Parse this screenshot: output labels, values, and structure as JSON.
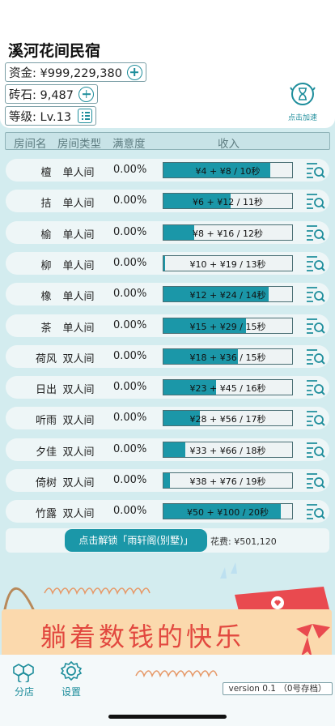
{
  "app": {
    "title": "溪河花间民宿",
    "funds_label": "资金: ¥999,229,380",
    "bricks_label": "砖石: 9,487",
    "level_label": "等级: Lv.13",
    "speed_label": "点击加速"
  },
  "table": {
    "headers": [
      "房间名",
      "房间类型",
      "满意度",
      "收入"
    ],
    "rows": [
      {
        "name": "檀",
        "type": "单人间",
        "satisfaction": "0.00%",
        "income": "¥4 + ¥8 / 10秒",
        "progress": 0.83
      },
      {
        "name": "拮",
        "type": "单人间",
        "satisfaction": "0.00%",
        "income": "¥6 + ¥12 / 11秒",
        "progress": 0.52
      },
      {
        "name": "榆",
        "type": "单人间",
        "satisfaction": "0.00%",
        "income": "¥8 + ¥16 / 12秒",
        "progress": 0.24
      },
      {
        "name": "柳",
        "type": "单人间",
        "satisfaction": "0.00%",
        "income": "¥10 + ¥19 / 13秒",
        "progress": 0.01
      },
      {
        "name": "橡",
        "type": "单人间",
        "satisfaction": "0.00%",
        "income": "¥12 + ¥24 / 14秒",
        "progress": 0.82
      },
      {
        "name": "茶",
        "type": "单人间",
        "satisfaction": "0.00%",
        "income": "¥15 + ¥29 / 15秒",
        "progress": 0.64
      },
      {
        "name": "荷风",
        "type": "双人间",
        "satisfaction": "0.00%",
        "income": "¥18 + ¥36 / 15秒",
        "progress": 0.58
      },
      {
        "name": "日出",
        "type": "双人间",
        "satisfaction": "0.00%",
        "income": "¥23 + ¥45 / 16秒",
        "progress": 0.41
      },
      {
        "name": "听雨",
        "type": "双人间",
        "satisfaction": "0.00%",
        "income": "¥28 + ¥56 / 17秒",
        "progress": 0.28
      },
      {
        "name": "夕佳",
        "type": "双人间",
        "satisfaction": "0.00%",
        "income": "¥33 + ¥66 / 18秒",
        "progress": 0.17
      },
      {
        "name": "倚树",
        "type": "双人间",
        "satisfaction": "0.00%",
        "income": "¥38 + ¥76 / 19秒",
        "progress": 0.05
      },
      {
        "name": "竹露",
        "type": "双人间",
        "satisfaction": "0.00%",
        "income": "¥50 + ¥100 / 20秒",
        "progress": 0.91
      }
    ]
  },
  "unlock": {
    "button_label": "点击解锁「雨轩阁(别墅)」",
    "cost_label": "花费: ¥501,120"
  },
  "banner": {
    "text": "躺着数钱的快乐"
  },
  "nav": {
    "branch_label": "分店",
    "settings_label": "设置"
  },
  "version": "version 0.1 （0号存档）",
  "colors": {
    "background": "#d3ecef",
    "accent": "#1b97a8",
    "banner_bg": "#fbd9ad",
    "banner_text": "#e2483f"
  },
  "icons": {
    "add": "plus-circle-icon",
    "level": "list-icon",
    "speed": "clock-hourglass-icon",
    "detail": "list-search-icon",
    "branch": "hexagons-icon",
    "settings": "gear-icon"
  }
}
